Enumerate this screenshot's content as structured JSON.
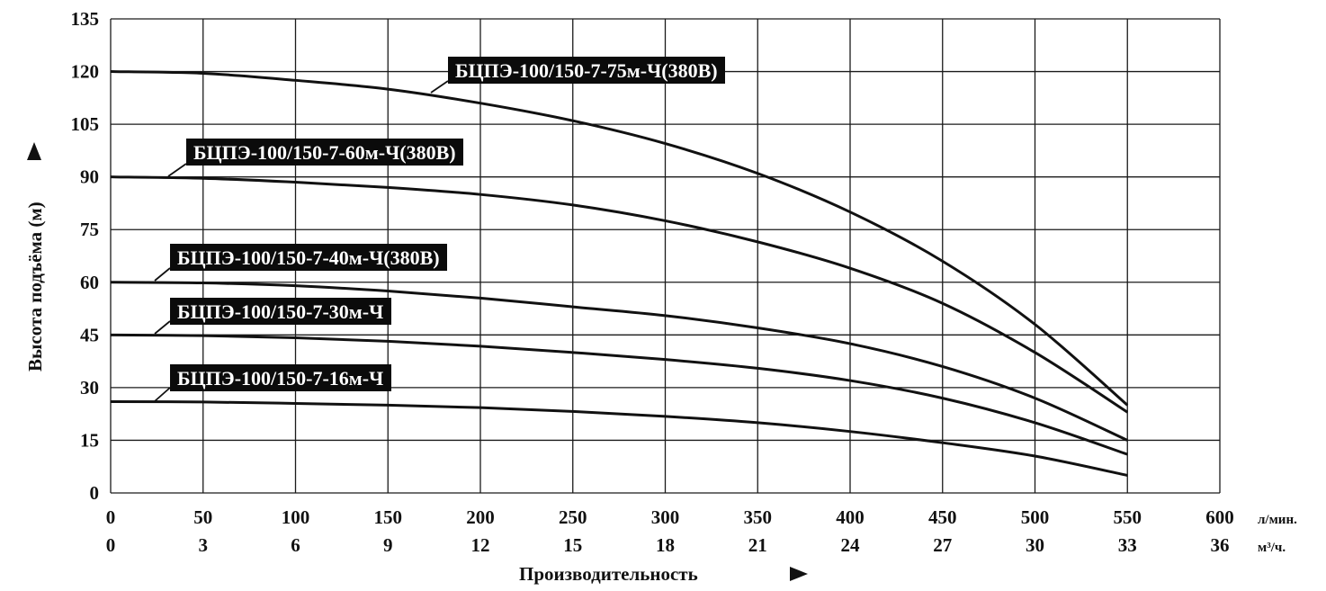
{
  "chart_data": {
    "type": "line",
    "ylabel": "Высота подъёма (м)",
    "xlabel": "Производительность",
    "ylim": [
      0,
      135
    ],
    "yticks": [
      0,
      15,
      30,
      45,
      60,
      75,
      90,
      105,
      120,
      135
    ],
    "xlim": [
      0,
      600
    ],
    "xticks_primary": [
      0,
      50,
      100,
      150,
      200,
      250,
      300,
      350,
      400,
      450,
      500,
      550,
      600
    ],
    "xunit_primary": "л/мин.",
    "xticks_secondary": [
      0,
      3,
      6,
      9,
      12,
      15,
      18,
      21,
      24,
      27,
      30,
      33,
      36
    ],
    "xunit_secondary": "м³/ч.",
    "grid": true,
    "series": [
      {
        "name": "БЦПЭ-100/150-7-75м-Ч(380В)",
        "x": [
          0,
          50,
          100,
          150,
          200,
          250,
          300,
          350,
          400,
          450,
          500,
          550
        ],
        "y": [
          120,
          119.5,
          117.5,
          115,
          111,
          106,
          99.5,
          91,
          80,
          66,
          48,
          25
        ]
      },
      {
        "name": "БЦПЭ-100/150-7-60м-Ч(380В)",
        "x": [
          0,
          50,
          100,
          150,
          200,
          250,
          300,
          350,
          400,
          450,
          500,
          550
        ],
        "y": [
          90,
          89.6,
          88.5,
          87,
          85,
          82,
          77.5,
          71.5,
          64,
          54,
          40,
          23
        ]
      },
      {
        "name": "БЦПЭ-100/150-7-40м-Ч(380В)",
        "x": [
          0,
          50,
          100,
          150,
          200,
          250,
          300,
          350,
          400,
          450,
          500,
          550
        ],
        "y": [
          60,
          59.8,
          59,
          57.5,
          55.5,
          53,
          50.5,
          47,
          42.5,
          36,
          27,
          15
        ]
      },
      {
        "name": "БЦПЭ-100/150-7-30м-Ч",
        "x": [
          0,
          50,
          100,
          150,
          200,
          250,
          300,
          350,
          400,
          450,
          500,
          550
        ],
        "y": [
          45,
          44.8,
          44.2,
          43.2,
          41.8,
          40,
          38,
          35.5,
          32,
          27,
          20,
          11
        ]
      },
      {
        "name": "БЦПЭ-100/150-7-16м-Ч",
        "x": [
          0,
          50,
          100,
          150,
          200,
          250,
          300,
          350,
          400,
          450,
          500,
          550
        ],
        "y": [
          26,
          25.9,
          25.5,
          25,
          24.3,
          23.2,
          21.8,
          20,
          17.5,
          14.3,
          10.5,
          5
        ]
      }
    ]
  }
}
